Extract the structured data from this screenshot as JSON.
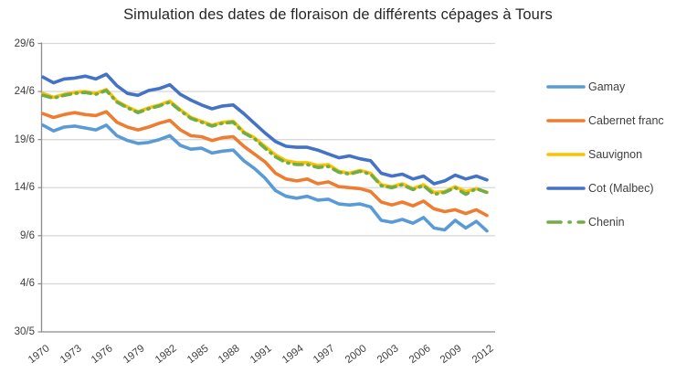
{
  "title": "Simulation des dates de floraison de différents cépages à Tours",
  "colors": {
    "gridline": "#d9d9d9",
    "axis_line": "#8c8c8c",
    "tick_text": "#404040",
    "title_text": "#262626"
  },
  "chart_data": {
    "type": "line",
    "title": "Simulation des dates de floraison de différents cépages à Tours",
    "xlabel": "",
    "ylabel": "",
    "grid": true,
    "legend_position": "right",
    "x": [
      1970,
      1971,
      1972,
      1973,
      1974,
      1975,
      1976,
      1977,
      1978,
      1979,
      1980,
      1981,
      1982,
      1983,
      1984,
      1985,
      1986,
      1987,
      1988,
      1989,
      1990,
      1991,
      1992,
      1993,
      1994,
      1995,
      1996,
      1997,
      1998,
      1999,
      2000,
      2001,
      2002,
      2003,
      2004,
      2005,
      2006,
      2007,
      2008,
      2009,
      2010,
      2011,
      2012
    ],
    "x_tick_labels": [
      "1970",
      "1973",
      "1976",
      "1979",
      "1982",
      "1985",
      "1988",
      "1991",
      "1994",
      "1997",
      "2000",
      "2003",
      "2006",
      "2009",
      "2012"
    ],
    "y_tick_labels": [
      "29/6",
      "24/6",
      "19/6",
      "14/6",
      "9/6",
      "4/6",
      "30/5"
    ],
    "y_tick_values_days_from_30_may": [
      30,
      25,
      20,
      15,
      10,
      5,
      0
    ],
    "y_axis_range": [
      "30/5",
      "29/6"
    ],
    "values_unit": "date in June (e.g. 25.5 = 25.5 June); axis bottom is 30 May",
    "series": [
      {
        "name": "Gamay",
        "color": "#5B9BD5",
        "dash": false,
        "values": [
          20.5,
          19.9,
          20.3,
          20.4,
          20.2,
          20.0,
          20.5,
          19.4,
          18.9,
          18.6,
          18.7,
          19.0,
          19.4,
          18.4,
          18.0,
          18.1,
          17.6,
          17.8,
          17.9,
          16.8,
          16.0,
          15.0,
          13.7,
          13.1,
          12.9,
          13.1,
          12.7,
          12.8,
          12.3,
          12.2,
          12.3,
          12.0,
          10.6,
          10.4,
          10.7,
          10.3,
          10.9,
          9.8,
          9.6,
          10.6,
          9.8,
          10.5,
          9.5
        ]
      },
      {
        "name": "Cabernet franc",
        "color": "#ED7D31",
        "dash": false,
        "values": [
          21.7,
          21.3,
          21.6,
          21.8,
          21.6,
          21.5,
          21.9,
          20.8,
          20.3,
          20.0,
          20.3,
          20.7,
          21.0,
          20.0,
          19.4,
          19.3,
          18.9,
          19.2,
          19.3,
          18.3,
          17.5,
          16.7,
          15.5,
          14.9,
          14.7,
          14.9,
          14.4,
          14.6,
          14.1,
          14.0,
          13.9,
          13.6,
          12.5,
          12.2,
          12.5,
          12.1,
          12.6,
          11.8,
          11.5,
          11.7,
          11.3,
          11.7,
          11.1
        ]
      },
      {
        "name": "Sauvignon",
        "color": "#FFC000",
        "dash": false,
        "values": [
          23.8,
          23.4,
          23.7,
          23.9,
          24.0,
          23.8,
          24.2,
          23.0,
          22.4,
          21.9,
          22.3,
          22.6,
          23.0,
          22.1,
          21.3,
          20.9,
          20.5,
          20.8,
          20.9,
          19.8,
          19.2,
          18.3,
          17.4,
          16.8,
          16.6,
          16.6,
          16.3,
          16.4,
          15.7,
          15.5,
          15.8,
          15.5,
          14.3,
          14.1,
          14.4,
          13.9,
          14.3,
          13.5,
          13.6,
          14.1,
          13.6,
          13.9,
          13.5
        ]
      },
      {
        "name": "Cot (Malbec)",
        "color": "#4472C4",
        "dash": false,
        "values": [
          25.5,
          24.9,
          25.3,
          25.4,
          25.6,
          25.3,
          25.8,
          24.6,
          23.8,
          23.6,
          24.1,
          24.3,
          24.7,
          23.7,
          23.1,
          22.6,
          22.2,
          22.5,
          22.6,
          21.7,
          20.7,
          19.7,
          18.8,
          18.3,
          18.2,
          18.2,
          17.9,
          17.5,
          17.1,
          17.3,
          17.0,
          16.8,
          15.5,
          15.2,
          15.4,
          14.9,
          15.2,
          14.4,
          14.7,
          15.3,
          14.9,
          15.2,
          14.8
        ]
      },
      {
        "name": "Chenin",
        "color": "#70AD47",
        "dash": true,
        "values": [
          23.6,
          23.3,
          23.6,
          23.8,
          23.9,
          23.7,
          24.1,
          22.9,
          22.3,
          21.8,
          22.2,
          22.5,
          22.9,
          22.0,
          21.2,
          20.8,
          20.4,
          20.7,
          20.8,
          19.7,
          19.1,
          18.1,
          17.2,
          16.6,
          16.4,
          16.4,
          16.1,
          16.2,
          15.6,
          15.4,
          15.7,
          15.4,
          14.2,
          14.0,
          14.3,
          13.8,
          14.2,
          13.3,
          13.5,
          14.0,
          13.3,
          13.9,
          13.5
        ]
      }
    ]
  }
}
